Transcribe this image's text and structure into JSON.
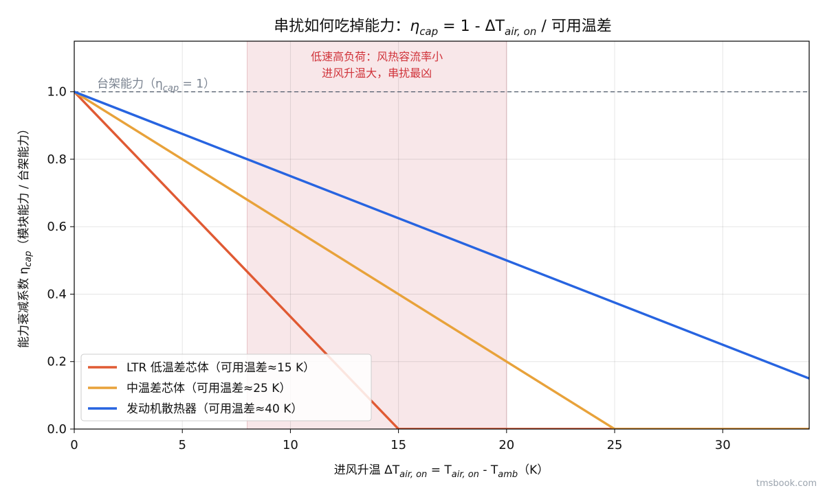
{
  "chart_data": {
    "type": "line",
    "title": "串扰如何吃掉能力：η_cap = 1 - ΔT_air,on / 可用温差",
    "title_parts": {
      "pre": "串扰如何吃掉能力：",
      "eta": "η",
      "eta_sub": "cap",
      "mid": " = 1 - ΔT",
      "t_sub": "air, on",
      "post": " / 可用温差"
    },
    "xlabel": "进风升温 ΔT_air,on = T_air,on - T_amb（K）",
    "xlabel_parts": {
      "pre": "进风升温  ΔT",
      "s1": "air, on",
      "m1": " = T",
      "s2": "air, on",
      "m2": " - T",
      "s3": "amb",
      "post": "（K）"
    },
    "ylabel": "能力衰减系数 η_cap（模块能力 / 台架能力）",
    "ylabel_parts": {
      "pre": "能力衰减系数  η",
      "sub": "cap",
      "post": "（模块能力 / 台架能力）"
    },
    "xlim": [
      0,
      34
    ],
    "ylim": [
      0,
      1.15
    ],
    "xticks": [
      0,
      5,
      10,
      15,
      20,
      25,
      30
    ],
    "yticks": [
      0.0,
      0.2,
      0.4,
      0.6,
      0.8,
      1.0
    ],
    "grid": true,
    "legend_position": "lower-left",
    "series": [
      {
        "name": "LTR 低温差芯体（可用温差≈15 K）",
        "available_dT": 15,
        "color": "#e05a33",
        "x": [
          0,
          15,
          34
        ],
        "y": [
          1.0,
          0.0,
          0.0
        ]
      },
      {
        "name": "中温差芯体（可用温差≈25 K）",
        "available_dT": 25,
        "color": "#e8a23a",
        "x": [
          0,
          25,
          34
        ],
        "y": [
          1.0,
          0.0,
          0.0
        ]
      },
      {
        "name": "发动机散热器（可用温差≈40 K）",
        "available_dT": 40,
        "color": "#2764e0",
        "x": [
          0,
          34
        ],
        "y": [
          1.0,
          0.15
        ]
      }
    ],
    "reference_line": {
      "y": 1.0,
      "label_pre": "台架能力（η",
      "label_sub": "cap",
      "label_post": " = 1）"
    },
    "shaded_region": {
      "x_start": 8,
      "x_end": 20,
      "color": "#f6dfe1",
      "label_line1": "低速高负荷：风热容流率小",
      "label_line2": "进风升温大，串扰最凶",
      "label_color": "#d0333a"
    },
    "watermark": "tmsbook.com"
  }
}
